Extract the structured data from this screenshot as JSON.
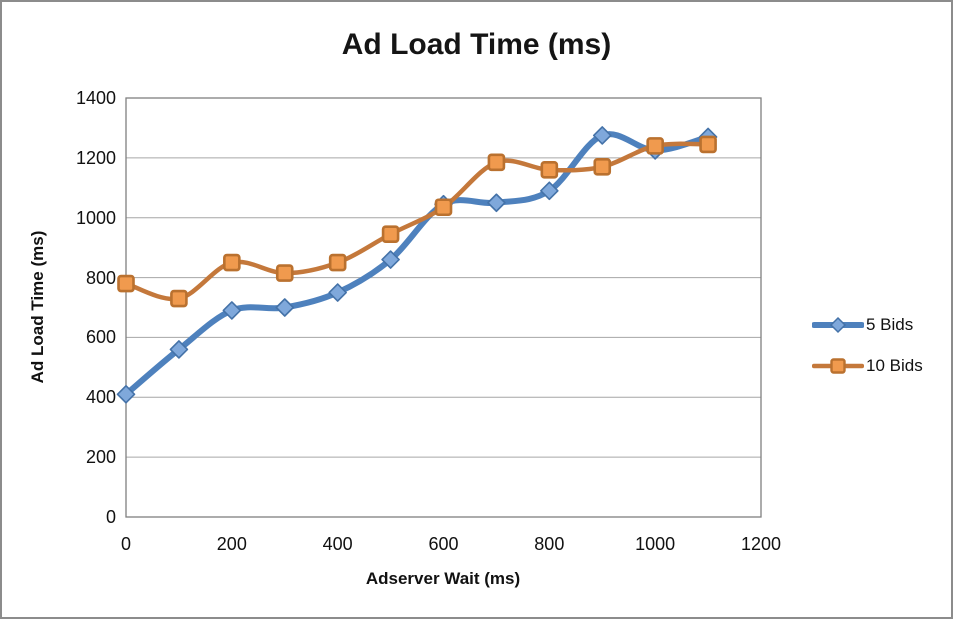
{
  "window": {
    "background_color": "#FFFFFF",
    "border_color": "#8C8C8C"
  },
  "chart_data": {
    "type": "line",
    "title": "Ad Load Time (ms)",
    "xlabel": "Adserver Wait (ms)",
    "ylabel": "Ad Load Time (ms)",
    "x": [
      0,
      100,
      200,
      300,
      400,
      500,
      600,
      700,
      800,
      900,
      1000,
      1100
    ],
    "series": [
      {
        "name": "5 Bids",
        "marker": "diamond",
        "line_color": "#4E81BD",
        "marker_fill": "#7FA8DB",
        "marker_stroke": "#4472A8",
        "line_width": 6,
        "values": [
          410,
          560,
          690,
          700,
          750,
          860,
          1045,
          1050,
          1090,
          1275,
          1225,
          1270
        ]
      },
      {
        "name": "10 Bids",
        "marker": "square",
        "line_color": "#C4783B",
        "marker_fill": "#F09A4E",
        "marker_stroke": "#BA712F",
        "line_width": 4.5,
        "values": [
          780,
          730,
          850,
          815,
          850,
          945,
          1035,
          1185,
          1160,
          1170,
          1240,
          1245
        ]
      }
    ],
    "xlim": [
      0,
      1200
    ],
    "ylim": [
      0,
      1400
    ],
    "x_ticks": [
      0,
      200,
      400,
      600,
      800,
      1000,
      1200
    ],
    "y_ticks": [
      0,
      200,
      400,
      600,
      800,
      1000,
      1200,
      1400
    ],
    "grid": "horizontal",
    "gridline_color": "#A6A6A6",
    "plot_border_color": "#808080",
    "legend_position": "right",
    "smooth": true
  }
}
